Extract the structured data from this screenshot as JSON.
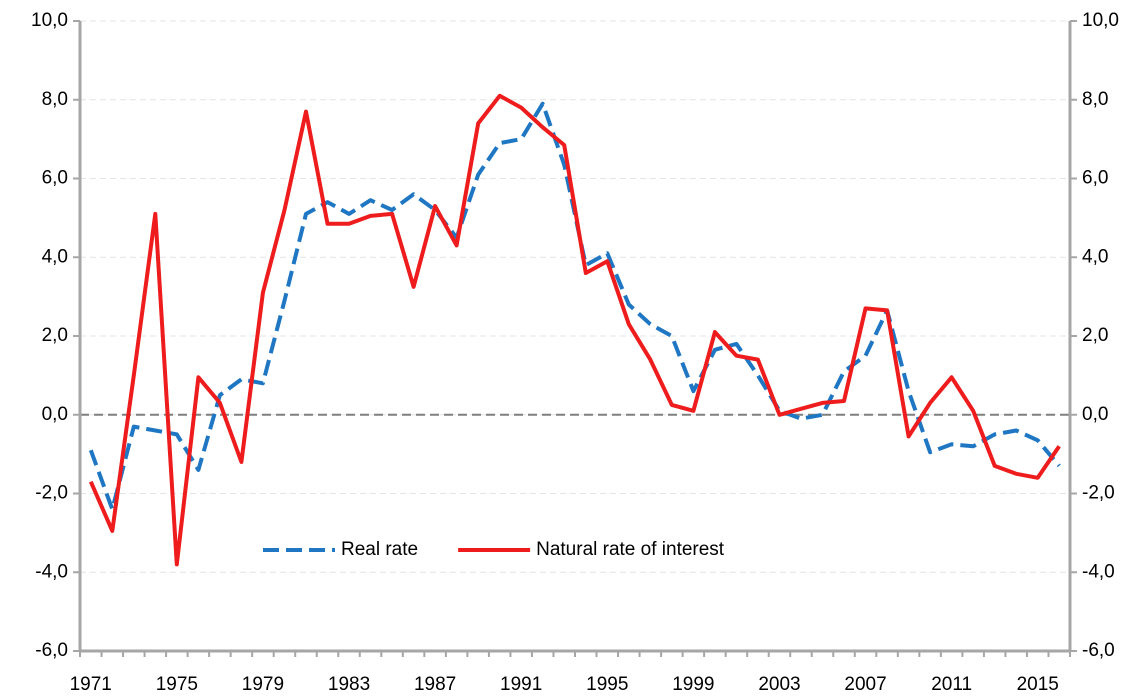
{
  "chart_data": {
    "type": "line",
    "categories": [
      "1971",
      null,
      null,
      null,
      "1975",
      null,
      null,
      null,
      "1979",
      null,
      null,
      null,
      "1983",
      null,
      null,
      null,
      "1987",
      null,
      null,
      null,
      "1991",
      null,
      null,
      null,
      "1995",
      null,
      null,
      null,
      "1999",
      null,
      null,
      null,
      "2003",
      null,
      null,
      null,
      "2007",
      null,
      null,
      null,
      "2011",
      null,
      null,
      null,
      "2015",
      null
    ],
    "series": [
      {
        "name": "Real rate",
        "color": "#1f77c4",
        "dash": true,
        "values": [
          -0.9,
          -2.4,
          -0.3,
          -0.4,
          -0.5,
          -1.4,
          0.5,
          0.9,
          0.8,
          2.9,
          5.1,
          5.4,
          5.1,
          5.45,
          5.2,
          5.6,
          5.2,
          4.5,
          6.1,
          6.9,
          7.0,
          7.9,
          6.35,
          3.8,
          4.1,
          2.8,
          2.3,
          2.0,
          0.6,
          1.65,
          1.8,
          1.0,
          0.1,
          -0.1,
          0.0,
          1.1,
          1.5,
          2.65,
          0.6,
          -0.95,
          -0.75,
          -0.8,
          -0.5,
          -0.4,
          -0.65,
          -1.3
        ]
      },
      {
        "name": "Natural rate of interest",
        "color": "#ee1c1c",
        "dash": false,
        "values": [
          -1.7,
          -2.95,
          1.0,
          5.1,
          -3.8,
          0.95,
          0.3,
          -1.2,
          3.1,
          5.2,
          7.7,
          4.85,
          4.85,
          5.05,
          5.1,
          3.25,
          5.3,
          4.3,
          7.4,
          8.1,
          7.8,
          7.3,
          6.85,
          3.6,
          3.9,
          2.3,
          1.4,
          0.25,
          0.1,
          2.1,
          1.5,
          1.4,
          0.0,
          0.15,
          0.3,
          0.35,
          2.7,
          2.65,
          -0.55,
          0.3,
          0.95,
          0.1,
          -1.3,
          -1.5,
          -1.6,
          -0.8
        ]
      }
    ],
    "ylim": [
      -6,
      10
    ],
    "yticks": [
      {
        "value": -6,
        "label": "-6,0"
      },
      {
        "value": -4,
        "label": "-4,0"
      },
      {
        "value": -2,
        "label": "-2,0"
      },
      {
        "value": 0,
        "label": "0,0"
      },
      {
        "value": 2,
        "label": "2,0"
      },
      {
        "value": 4,
        "label": "4,0"
      },
      {
        "value": 6,
        "label": "6,0"
      },
      {
        "value": 8,
        "label": "8,0"
      },
      {
        "value": 10,
        "label": "10,0"
      }
    ],
    "y2lim": [
      -6,
      10
    ],
    "y2ticks": [
      {
        "value": -6,
        "label": "-6,0"
      },
      {
        "value": -4,
        "label": "-4,0"
      },
      {
        "value": -2,
        "label": "-2,0"
      },
      {
        "value": 0,
        "label": "0,0"
      },
      {
        "value": 2,
        "label": "2,0"
      },
      {
        "value": 4,
        "label": "4,0"
      },
      {
        "value": 6,
        "label": "6,0"
      },
      {
        "value": 8,
        "label": "8,0"
      },
      {
        "value": 10,
        "label": "10,0"
      }
    ],
    "grid": true,
    "legend": "lower center"
  }
}
